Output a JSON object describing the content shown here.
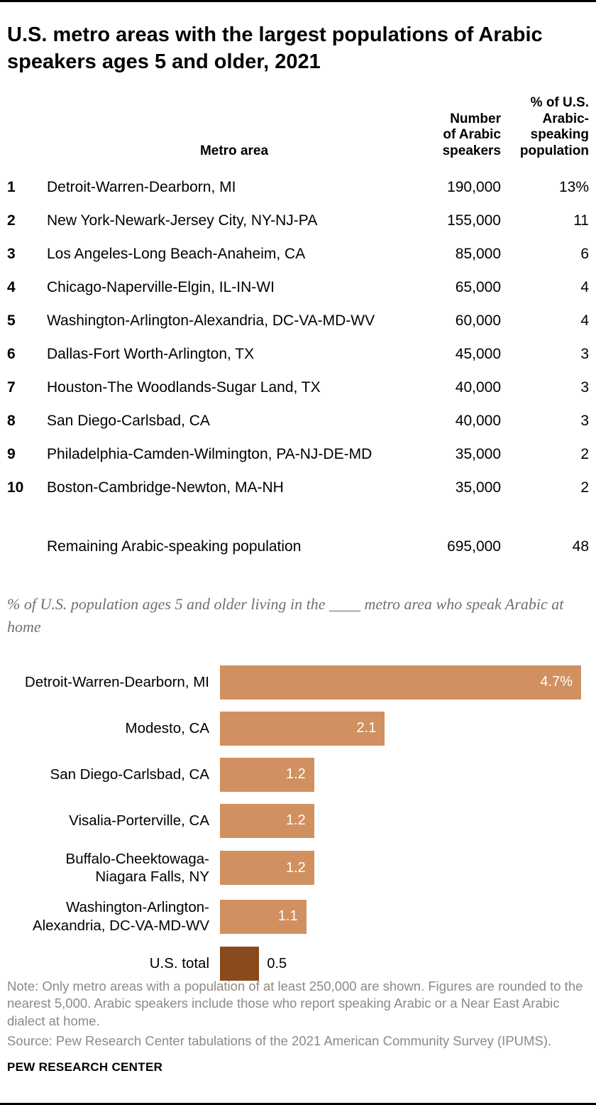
{
  "title": "U.S. metro areas with the largest populations of Arabic speakers ages 5 and older, 2021",
  "table": {
    "headers": {
      "metro": "Metro area",
      "number": "Number\nof Arabic\nspeakers",
      "pct": "% of U.S.\nArabic-\nspeaking\npopulation"
    },
    "rows": [
      {
        "rank": "1",
        "metro": "Detroit-Warren-Dearborn, MI",
        "number": "190,000",
        "pct": "13%"
      },
      {
        "rank": "2",
        "metro": "New York-Newark-Jersey City, NY-NJ-PA",
        "number": "155,000",
        "pct": "11"
      },
      {
        "rank": "3",
        "metro": "Los Angeles-Long Beach-Anaheim, CA",
        "number": "85,000",
        "pct": "6"
      },
      {
        "rank": "4",
        "metro": "Chicago-Naperville-Elgin, IL-IN-WI",
        "number": "65,000",
        "pct": "4"
      },
      {
        "rank": "5",
        "metro": "Washington-Arlington-Alexandria, DC-VA-MD-WV",
        "number": "60,000",
        "pct": "4"
      },
      {
        "rank": "6",
        "metro": "Dallas-Fort Worth-Arlington, TX",
        "number": "45,000",
        "pct": "3"
      },
      {
        "rank": "7",
        "metro": "Houston-The Woodlands-Sugar Land, TX",
        "number": "40,000",
        "pct": "3"
      },
      {
        "rank": "8",
        "metro": "San Diego-Carlsbad, CA",
        "number": "40,000",
        "pct": "3"
      },
      {
        "rank": "9",
        "metro": "Philadelphia-Camden-Wilmington, PA-NJ-DE-MD",
        "number": "35,000",
        "pct": "2"
      },
      {
        "rank": "10",
        "metro": "Boston-Cambridge-Newton, MA-NH",
        "number": "35,000",
        "pct": "2"
      }
    ],
    "summary": {
      "rank": "",
      "metro": "Remaining Arabic-speaking population",
      "number": "695,000",
      "pct": "48"
    }
  },
  "chart_data": {
    "type": "bar",
    "orientation": "horizontal",
    "title": "% of U.S. population ages 5 and older living in the ____ metro area who speak Arabic at home",
    "categories": [
      "Detroit-Warren-Dearborn, MI",
      "Modesto, CA",
      "San Diego-Carlsbad, CA",
      "Visalia-Porterville, CA",
      "Buffalo-Cheektowaga-\nNiagara Falls, NY",
      "Washington-Arlington-\nAlexandria, DC-VA-MD-WV",
      "U.S. total"
    ],
    "values": [
      4.7,
      2.1,
      1.2,
      1.2,
      1.2,
      1.1,
      0.5
    ],
    "value_labels": [
      "4.7%",
      "2.1",
      "1.2",
      "1.2",
      "1.2",
      "1.1",
      "0.5"
    ],
    "colors": [
      "#d0905f",
      "#d0905f",
      "#d0905f",
      "#d0905f",
      "#d0905f",
      "#d0905f",
      "#8a4a1e"
    ],
    "label_inside": [
      true,
      true,
      true,
      true,
      true,
      true,
      false
    ],
    "xlim": [
      0,
      4.7
    ],
    "bar_color": "#d0905f",
    "us_total_color": "#8a4a1e",
    "legend": "none",
    "grid": "off"
  },
  "footer": {
    "note": "Note: Only metro areas with a population of at least 250,000 are shown. Figures are rounded to the nearest 5,000. Arabic speakers include those who report speaking Arabic or a Near East Arabic dialect at home.",
    "source": "Source: Pew Research Center tabulations of the 2021 American Community Survey (IPUMS).",
    "brand": "PEW RESEARCH CENTER"
  }
}
